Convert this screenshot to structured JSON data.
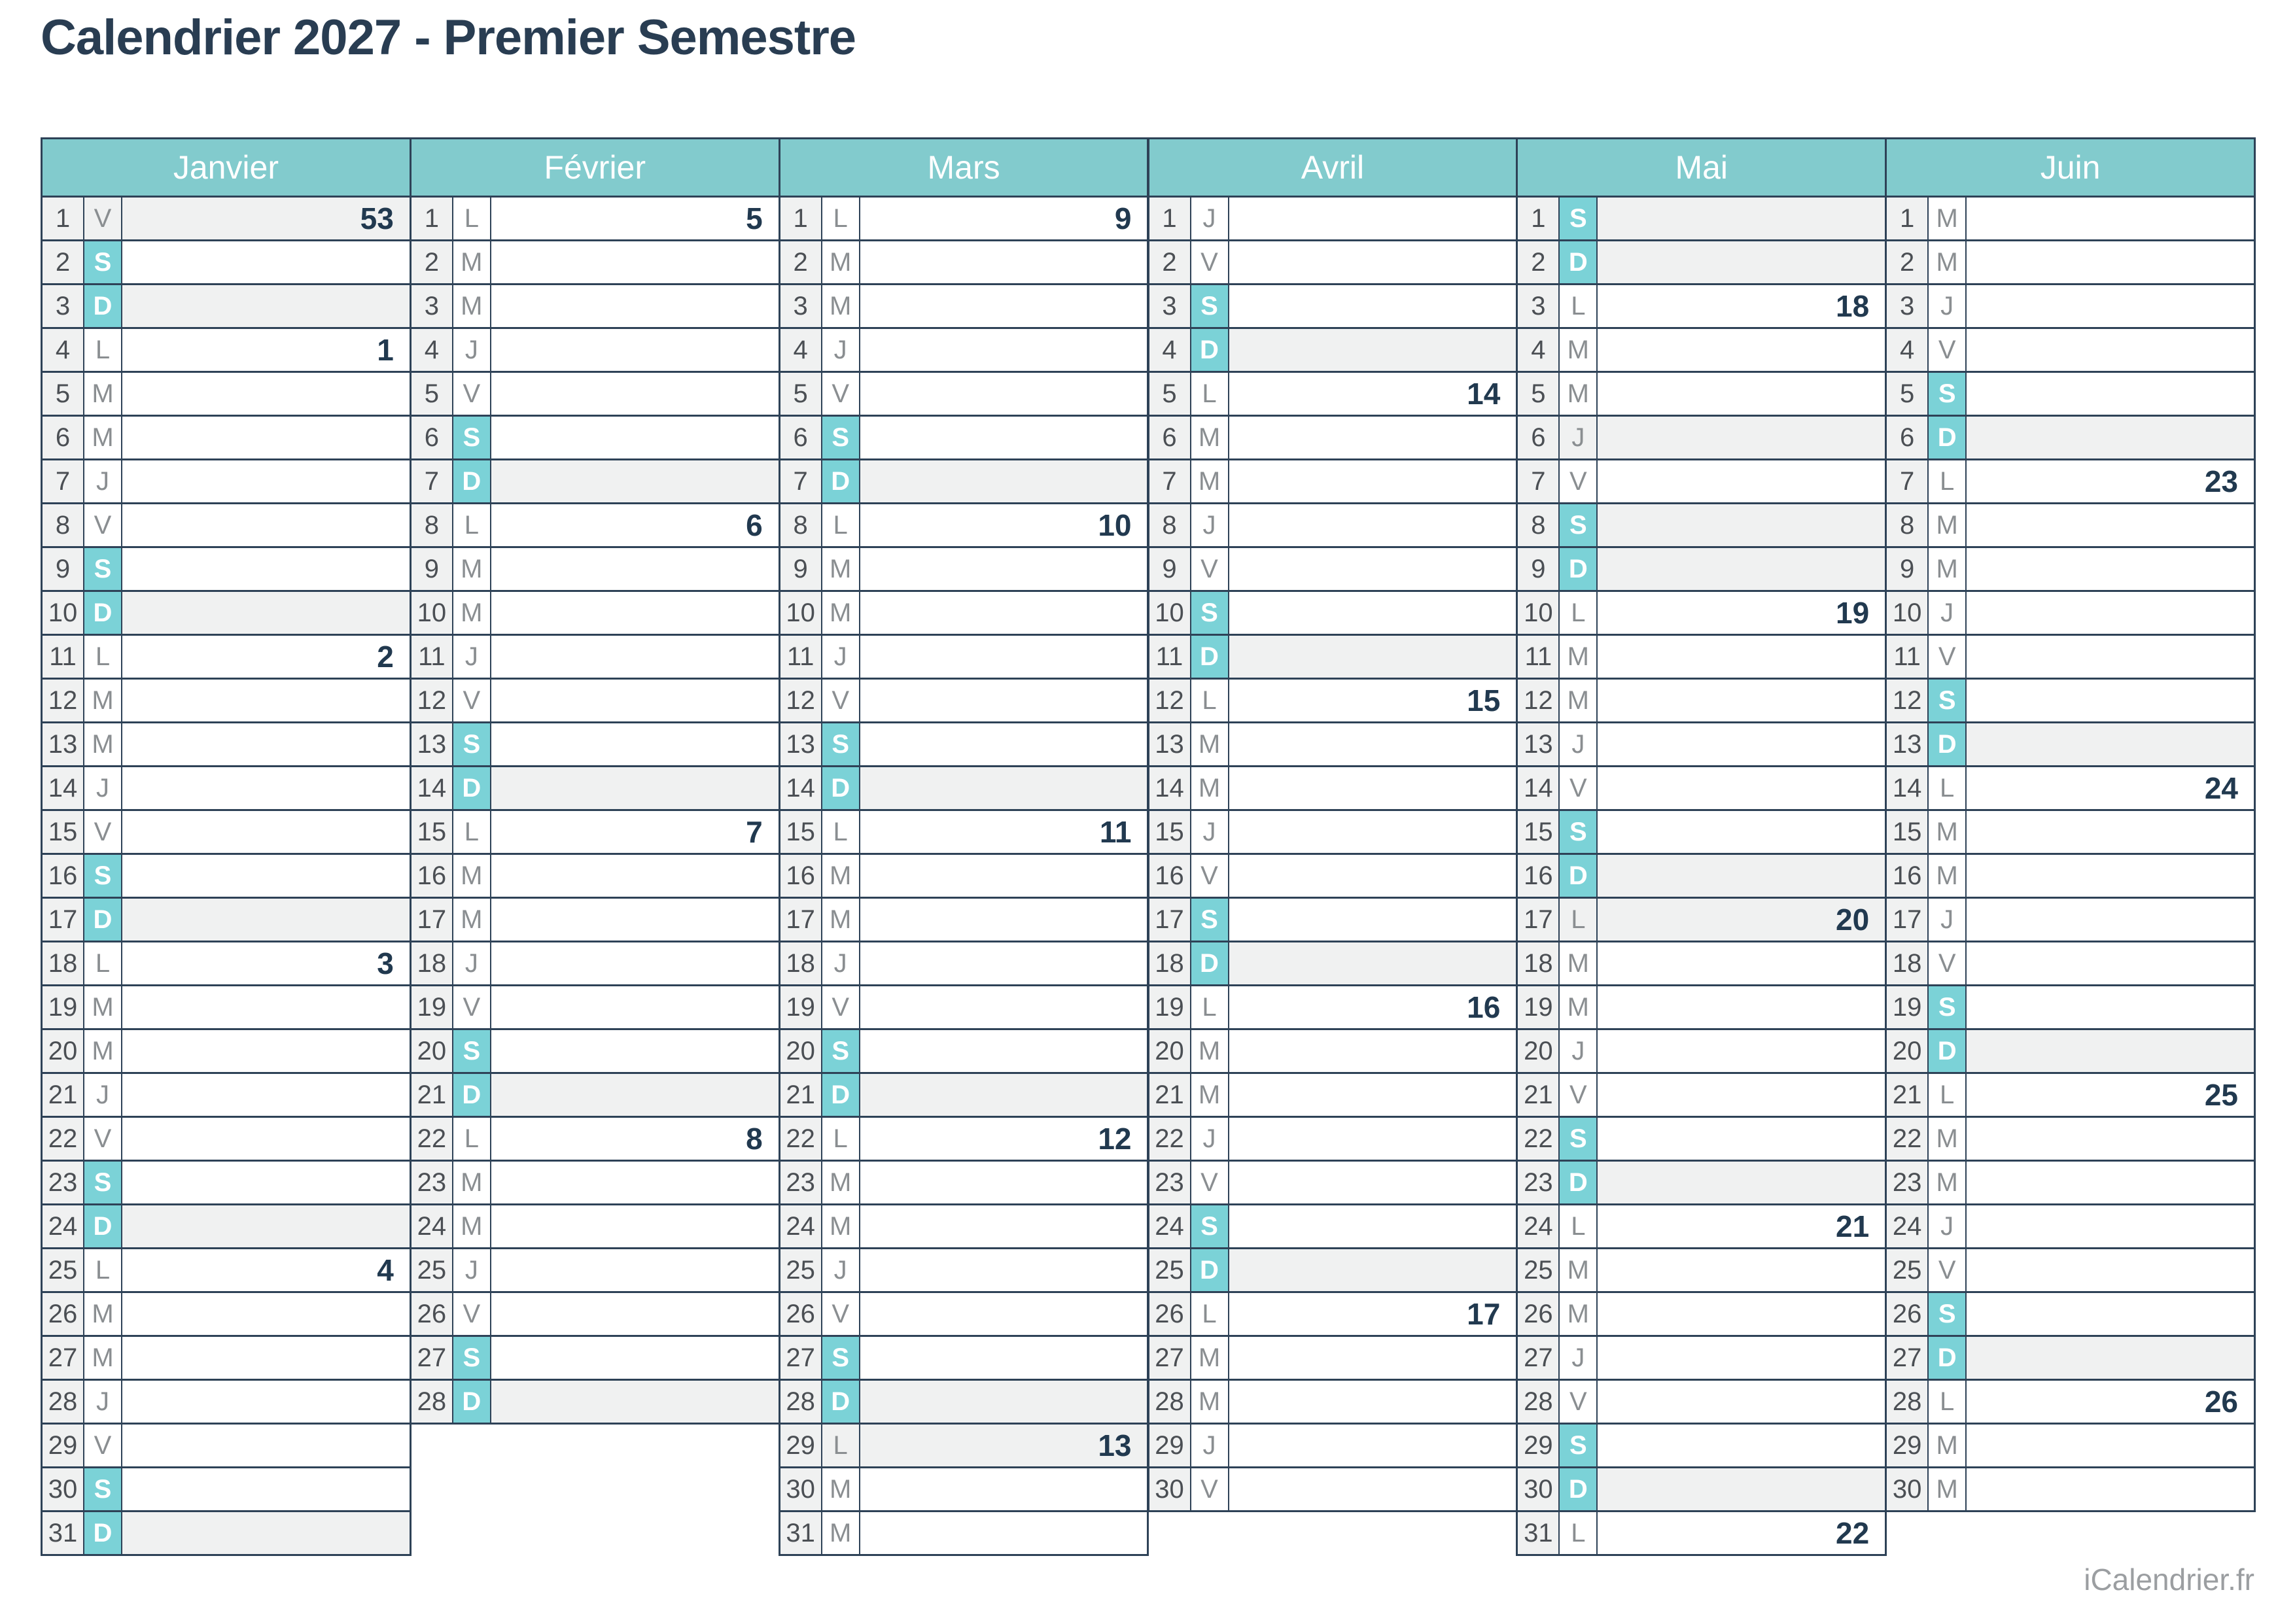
{
  "title": "Calendrier 2027 - Premier Semestre",
  "footer": "iCalendrier.fr",
  "colors": {
    "header_teal": "#82cbcd",
    "weekend_teal": "#7bd2d7",
    "shaded_row_gray": "#f0f1f1",
    "border_navy": "#2e4257",
    "title_navy": "#293d52",
    "week_number_navy": "#21394f",
    "day_number_gray": "#4b4f54",
    "weekday_letter_gray": "#8a8e91",
    "footer_gray": "#9b9ea1"
  },
  "flags_legend": {
    "w": "weekend day letter shown white on teal",
    "g": "row shaded gray (sunday or public holiday)"
  },
  "day_fields": [
    "day_number",
    "weekday_letter",
    "week_number",
    "flags"
  ],
  "months": [
    {
      "name": "Janvier",
      "days": [
        [
          1,
          "V",
          "53",
          "g"
        ],
        [
          2,
          "S",
          "",
          "w"
        ],
        [
          3,
          "D",
          "",
          "wg"
        ],
        [
          4,
          "L",
          "1",
          ""
        ],
        [
          5,
          "M",
          "",
          ""
        ],
        [
          6,
          "M",
          "",
          ""
        ],
        [
          7,
          "J",
          "",
          ""
        ],
        [
          8,
          "V",
          "",
          ""
        ],
        [
          9,
          "S",
          "",
          "w"
        ],
        [
          10,
          "D",
          "",
          "wg"
        ],
        [
          11,
          "L",
          "2",
          ""
        ],
        [
          12,
          "M",
          "",
          ""
        ],
        [
          13,
          "M",
          "",
          ""
        ],
        [
          14,
          "J",
          "",
          ""
        ],
        [
          15,
          "V",
          "",
          ""
        ],
        [
          16,
          "S",
          "",
          "w"
        ],
        [
          17,
          "D",
          "",
          "wg"
        ],
        [
          18,
          "L",
          "3",
          ""
        ],
        [
          19,
          "M",
          "",
          ""
        ],
        [
          20,
          "M",
          "",
          ""
        ],
        [
          21,
          "J",
          "",
          ""
        ],
        [
          22,
          "V",
          "",
          ""
        ],
        [
          23,
          "S",
          "",
          "w"
        ],
        [
          24,
          "D",
          "",
          "wg"
        ],
        [
          25,
          "L",
          "4",
          ""
        ],
        [
          26,
          "M",
          "",
          ""
        ],
        [
          27,
          "M",
          "",
          ""
        ],
        [
          28,
          "J",
          "",
          ""
        ],
        [
          29,
          "V",
          "",
          ""
        ],
        [
          30,
          "S",
          "",
          "w"
        ],
        [
          31,
          "D",
          "",
          "wg"
        ]
      ]
    },
    {
      "name": "Février",
      "days": [
        [
          1,
          "L",
          "5",
          ""
        ],
        [
          2,
          "M",
          "",
          ""
        ],
        [
          3,
          "M",
          "",
          ""
        ],
        [
          4,
          "J",
          "",
          ""
        ],
        [
          5,
          "V",
          "",
          ""
        ],
        [
          6,
          "S",
          "",
          "w"
        ],
        [
          7,
          "D",
          "",
          "wg"
        ],
        [
          8,
          "L",
          "6",
          ""
        ],
        [
          9,
          "M",
          "",
          ""
        ],
        [
          10,
          "M",
          "",
          ""
        ],
        [
          11,
          "J",
          "",
          ""
        ],
        [
          12,
          "V",
          "",
          ""
        ],
        [
          13,
          "S",
          "",
          "w"
        ],
        [
          14,
          "D",
          "",
          "wg"
        ],
        [
          15,
          "L",
          "7",
          ""
        ],
        [
          16,
          "M",
          "",
          ""
        ],
        [
          17,
          "M",
          "",
          ""
        ],
        [
          18,
          "J",
          "",
          ""
        ],
        [
          19,
          "V",
          "",
          ""
        ],
        [
          20,
          "S",
          "",
          "w"
        ],
        [
          21,
          "D",
          "",
          "wg"
        ],
        [
          22,
          "L",
          "8",
          ""
        ],
        [
          23,
          "M",
          "",
          ""
        ],
        [
          24,
          "M",
          "",
          ""
        ],
        [
          25,
          "J",
          "",
          ""
        ],
        [
          26,
          "V",
          "",
          ""
        ],
        [
          27,
          "S",
          "",
          "w"
        ],
        [
          28,
          "D",
          "",
          "wg"
        ]
      ]
    },
    {
      "name": "Mars",
      "days": [
        [
          1,
          "L",
          "9",
          ""
        ],
        [
          2,
          "M",
          "",
          ""
        ],
        [
          3,
          "M",
          "",
          ""
        ],
        [
          4,
          "J",
          "",
          ""
        ],
        [
          5,
          "V",
          "",
          ""
        ],
        [
          6,
          "S",
          "",
          "w"
        ],
        [
          7,
          "D",
          "",
          "wg"
        ],
        [
          8,
          "L",
          "10",
          ""
        ],
        [
          9,
          "M",
          "",
          ""
        ],
        [
          10,
          "M",
          "",
          ""
        ],
        [
          11,
          "J",
          "",
          ""
        ],
        [
          12,
          "V",
          "",
          ""
        ],
        [
          13,
          "S",
          "",
          "w"
        ],
        [
          14,
          "D",
          "",
          "wg"
        ],
        [
          15,
          "L",
          "11",
          ""
        ],
        [
          16,
          "M",
          "",
          ""
        ],
        [
          17,
          "M",
          "",
          ""
        ],
        [
          18,
          "J",
          "",
          ""
        ],
        [
          19,
          "V",
          "",
          ""
        ],
        [
          20,
          "S",
          "",
          "w"
        ],
        [
          21,
          "D",
          "",
          "wg"
        ],
        [
          22,
          "L",
          "12",
          ""
        ],
        [
          23,
          "M",
          "",
          ""
        ],
        [
          24,
          "M",
          "",
          ""
        ],
        [
          25,
          "J",
          "",
          ""
        ],
        [
          26,
          "V",
          "",
          ""
        ],
        [
          27,
          "S",
          "",
          "w"
        ],
        [
          28,
          "D",
          "",
          "wg"
        ],
        [
          29,
          "L",
          "13",
          "g"
        ],
        [
          30,
          "M",
          "",
          ""
        ],
        [
          31,
          "M",
          "",
          ""
        ]
      ]
    },
    {
      "name": "Avril",
      "days": [
        [
          1,
          "J",
          "",
          ""
        ],
        [
          2,
          "V",
          "",
          ""
        ],
        [
          3,
          "S",
          "",
          "w"
        ],
        [
          4,
          "D",
          "",
          "wg"
        ],
        [
          5,
          "L",
          "14",
          ""
        ],
        [
          6,
          "M",
          "",
          ""
        ],
        [
          7,
          "M",
          "",
          ""
        ],
        [
          8,
          "J",
          "",
          ""
        ],
        [
          9,
          "V",
          "",
          ""
        ],
        [
          10,
          "S",
          "",
          "w"
        ],
        [
          11,
          "D",
          "",
          "wg"
        ],
        [
          12,
          "L",
          "15",
          ""
        ],
        [
          13,
          "M",
          "",
          ""
        ],
        [
          14,
          "M",
          "",
          ""
        ],
        [
          15,
          "J",
          "",
          ""
        ],
        [
          16,
          "V",
          "",
          ""
        ],
        [
          17,
          "S",
          "",
          "w"
        ],
        [
          18,
          "D",
          "",
          "wg"
        ],
        [
          19,
          "L",
          "16",
          ""
        ],
        [
          20,
          "M",
          "",
          ""
        ],
        [
          21,
          "M",
          "",
          ""
        ],
        [
          22,
          "J",
          "",
          ""
        ],
        [
          23,
          "V",
          "",
          ""
        ],
        [
          24,
          "S",
          "",
          "w"
        ],
        [
          25,
          "D",
          "",
          "wg"
        ],
        [
          26,
          "L",
          "17",
          ""
        ],
        [
          27,
          "M",
          "",
          ""
        ],
        [
          28,
          "M",
          "",
          ""
        ],
        [
          29,
          "J",
          "",
          ""
        ],
        [
          30,
          "V",
          "",
          ""
        ]
      ]
    },
    {
      "name": "Mai",
      "days": [
        [
          1,
          "S",
          "",
          "wg"
        ],
        [
          2,
          "D",
          "",
          "wg"
        ],
        [
          3,
          "L",
          "18",
          ""
        ],
        [
          4,
          "M",
          "",
          ""
        ],
        [
          5,
          "M",
          "",
          ""
        ],
        [
          6,
          "J",
          "",
          "g"
        ],
        [
          7,
          "V",
          "",
          ""
        ],
        [
          8,
          "S",
          "",
          "wg"
        ],
        [
          9,
          "D",
          "",
          "wg"
        ],
        [
          10,
          "L",
          "19",
          ""
        ],
        [
          11,
          "M",
          "",
          ""
        ],
        [
          12,
          "M",
          "",
          ""
        ],
        [
          13,
          "J",
          "",
          ""
        ],
        [
          14,
          "V",
          "",
          ""
        ],
        [
          15,
          "S",
          "",
          "w"
        ],
        [
          16,
          "D",
          "",
          "wg"
        ],
        [
          17,
          "L",
          "20",
          "g"
        ],
        [
          18,
          "M",
          "",
          ""
        ],
        [
          19,
          "M",
          "",
          ""
        ],
        [
          20,
          "J",
          "",
          ""
        ],
        [
          21,
          "V",
          "",
          ""
        ],
        [
          22,
          "S",
          "",
          "w"
        ],
        [
          23,
          "D",
          "",
          "wg"
        ],
        [
          24,
          "L",
          "21",
          ""
        ],
        [
          25,
          "M",
          "",
          ""
        ],
        [
          26,
          "M",
          "",
          ""
        ],
        [
          27,
          "J",
          "",
          ""
        ],
        [
          28,
          "V",
          "",
          ""
        ],
        [
          29,
          "S",
          "",
          "w"
        ],
        [
          30,
          "D",
          "",
          "wg"
        ],
        [
          31,
          "L",
          "22",
          ""
        ]
      ]
    },
    {
      "name": "Juin",
      "days": [
        [
          1,
          "M",
          "",
          ""
        ],
        [
          2,
          "M",
          "",
          ""
        ],
        [
          3,
          "J",
          "",
          ""
        ],
        [
          4,
          "V",
          "",
          ""
        ],
        [
          5,
          "S",
          "",
          "w"
        ],
        [
          6,
          "D",
          "",
          "wg"
        ],
        [
          7,
          "L",
          "23",
          ""
        ],
        [
          8,
          "M",
          "",
          ""
        ],
        [
          9,
          "M",
          "",
          ""
        ],
        [
          10,
          "J",
          "",
          ""
        ],
        [
          11,
          "V",
          "",
          ""
        ],
        [
          12,
          "S",
          "",
          "w"
        ],
        [
          13,
          "D",
          "",
          "wg"
        ],
        [
          14,
          "L",
          "24",
          ""
        ],
        [
          15,
          "M",
          "",
          ""
        ],
        [
          16,
          "M",
          "",
          ""
        ],
        [
          17,
          "J",
          "",
          ""
        ],
        [
          18,
          "V",
          "",
          ""
        ],
        [
          19,
          "S",
          "",
          "w"
        ],
        [
          20,
          "D",
          "",
          "wg"
        ],
        [
          21,
          "L",
          "25",
          ""
        ],
        [
          22,
          "M",
          "",
          ""
        ],
        [
          23,
          "M",
          "",
          ""
        ],
        [
          24,
          "J",
          "",
          ""
        ],
        [
          25,
          "V",
          "",
          ""
        ],
        [
          26,
          "S",
          "",
          "w"
        ],
        [
          27,
          "D",
          "",
          "wg"
        ],
        [
          28,
          "L",
          "26",
          ""
        ],
        [
          29,
          "M",
          "",
          ""
        ],
        [
          30,
          "M",
          "",
          ""
        ]
      ]
    }
  ]
}
